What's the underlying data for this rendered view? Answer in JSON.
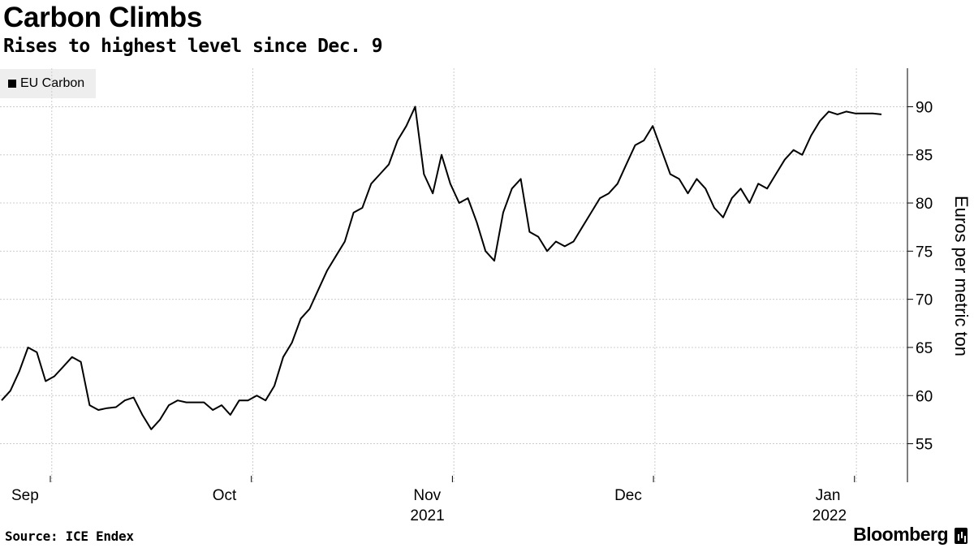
{
  "header": {
    "title": "Carbon Climbs",
    "subtitle": "Rises to highest level since Dec. 9"
  },
  "footer": {
    "source": "Source: ICE Endex",
    "brand": "Bloomberg"
  },
  "colors": {
    "line": "#000000",
    "grid": "#cccccc",
    "legend_bg": "#eeeeee"
  },
  "chart_data": {
    "type": "line",
    "title": "Carbon Climbs",
    "subtitle": "Rises to highest level since Dec. 9",
    "ylabel": "Euros per metric ton",
    "xlabel": "",
    "ylim": [
      51,
      94
    ],
    "yticks": [
      55,
      60,
      65,
      70,
      75,
      80,
      85,
      90
    ],
    "xlim": [
      0,
      20
    ],
    "xticks": [
      {
        "pos": 0,
        "label": "Sep"
      },
      {
        "pos": 4.57,
        "label": "Oct"
      },
      {
        "pos": 9.14,
        "label": "Nov",
        "year": "2021"
      },
      {
        "pos": 13.71,
        "label": "Dec"
      },
      {
        "pos": 18.28,
        "label": "Jan",
        "year": "2022"
      }
    ],
    "x_gridlines": [
      1.14,
      5.71,
      10.28,
      14.85,
      19.43
    ],
    "grid": true,
    "legend": {
      "position": "top-left",
      "entries": [
        "EU Carbon"
      ]
    },
    "series": [
      {
        "name": "EU Carbon",
        "x": [
          0,
          0.2,
          0.4,
          0.6,
          0.8,
          1.0,
          1.2,
          1.4,
          1.6,
          1.8,
          2.0,
          2.2,
          2.4,
          2.6,
          2.8,
          3.0,
          3.2,
          3.4,
          3.6,
          3.8,
          4.0,
          4.2,
          4.4,
          4.6,
          4.8,
          5.0,
          5.2,
          5.4,
          5.6,
          5.8,
          6.0,
          6.2,
          6.4,
          6.6,
          6.8,
          7.0,
          7.2,
          7.4,
          7.6,
          7.8,
          8.0,
          8.2,
          8.4,
          8.6,
          8.8,
          9.0,
          9.2,
          9.4,
          9.6,
          9.8,
          10.0,
          10.2,
          10.4,
          10.6,
          10.8,
          11.0,
          11.2,
          11.4,
          11.6,
          11.8,
          12.0,
          12.2,
          12.4,
          12.6,
          12.8,
          13.0,
          13.2,
          13.4,
          13.6,
          13.8,
          14.0,
          14.2,
          14.4,
          14.6,
          14.8,
          15.0,
          15.2,
          15.4,
          15.6,
          15.8,
          16.0,
          16.2,
          16.4,
          16.6,
          16.8,
          17.0,
          17.2,
          17.4,
          17.6,
          17.8,
          18.0,
          18.2,
          18.4,
          18.6,
          18.8,
          19.0,
          19.2,
          19.4,
          19.6,
          19.8,
          20.0
        ],
        "values": [
          59.5,
          60.5,
          62.5,
          65,
          64.5,
          61.5,
          62,
          63,
          64,
          63.5,
          59,
          58.5,
          58.7,
          58.8,
          59.5,
          59.8,
          58,
          56.5,
          57.5,
          59,
          59.5,
          59.3,
          59.3,
          59.3,
          58.5,
          59,
          58,
          59.5,
          59.5,
          60,
          59.5,
          61,
          64,
          65.5,
          68,
          69,
          71,
          73,
          74.5,
          76,
          79,
          79.5,
          82,
          83,
          84,
          86.5,
          88,
          90,
          83,
          81,
          85,
          82,
          80,
          80.5,
          78,
          75,
          74,
          79,
          81.5,
          82.5,
          77,
          76.5,
          75,
          76,
          75.5,
          76,
          77.5,
          79,
          80.5,
          81,
          82,
          84,
          86,
          86.5,
          88,
          85.5,
          83,
          82.5,
          81,
          82.5,
          81.5,
          79.5,
          78.5,
          80.5,
          81.5,
          80,
          82,
          81.5,
          83,
          84.5,
          85.5,
          85,
          87,
          88.5,
          89.5,
          89.2,
          89.5,
          89.3,
          89.3,
          89.3,
          89.2
        ]
      }
    ]
  }
}
